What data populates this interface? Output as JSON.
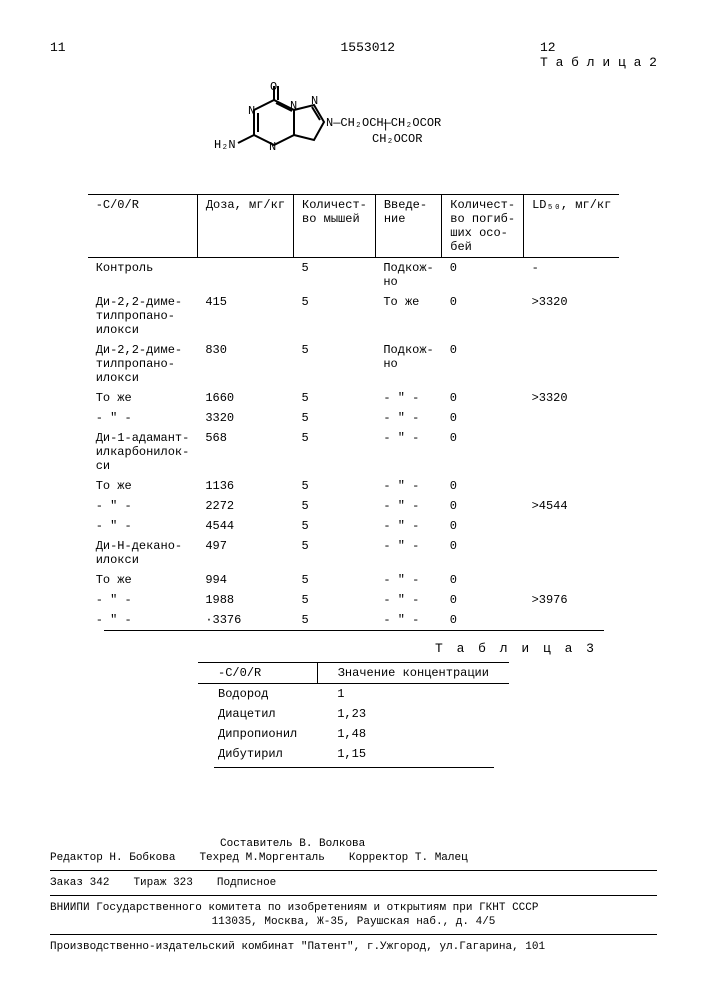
{
  "header": {
    "page_left": "11",
    "patent_number": "1553012",
    "page_right": "12",
    "table2_title": "Т а б л и ц а  2"
  },
  "chem": {
    "label_h2n": "H₂N",
    "label_o": "O",
    "label_n_ring": "N",
    "chain1": "N—CH₂OCH—CH₂OCOR",
    "chain2": "CH₂OCOR"
  },
  "table2": {
    "columns": [
      "-С/0/R",
      "Доза, мг/кг",
      "Количест-\nво мышей",
      "Введе-\nние",
      "Количест-\nво погиб-\nших осо-\nбей",
      "LD₅₀, мг/кг"
    ],
    "rows": [
      [
        "Контроль",
        "",
        "5",
        "Подкож-\nно",
        "0",
        "-"
      ],
      [
        "Ди-2,2-диме-\nтилпропано-\nилокси",
        "415",
        "5",
        "То же",
        "0",
        ">3320"
      ],
      [
        "Ди-2,2-диме-\nтилпропано-\nилокси",
        "830",
        "5",
        "Подкож-\nно",
        "0",
        ""
      ],
      [
        "То же",
        "1660",
        "5",
        "- \" -",
        "0",
        ">3320"
      ],
      [
        "- \" -",
        "3320",
        "5",
        "- \" -",
        "0",
        ""
      ],
      [
        "Ди-1-адамант-\nилкарбонилок-\nси",
        "568",
        "5",
        "- \" -",
        "0",
        ""
      ],
      [
        "То же",
        "1136",
        "5",
        "- \" -",
        "0",
        ""
      ],
      [
        "- \" -",
        "2272",
        "5",
        "- \" -",
        "0",
        ">4544"
      ],
      [
        "- \" -",
        "4544",
        "5",
        "- \" -",
        "0",
        ""
      ],
      [
        "Ди-Н-декано-\nилокси",
        "497",
        "5",
        "- \" -",
        "0",
        ""
      ],
      [
        "То же",
        "994",
        "5",
        "- \" -",
        "0",
        ""
      ],
      [
        "- \" -",
        "1988",
        "5",
        "- \" -",
        "0",
        ">3976"
      ],
      [
        "- \" -",
        "·3376",
        "5",
        "- \" -",
        "0",
        ""
      ]
    ]
  },
  "table3": {
    "title": "Т а б л и ц а 3",
    "columns": [
      "-С/0/R",
      "Значение концентрации"
    ],
    "rows": [
      [
        "Водород",
        "1"
      ],
      [
        "Диацетил",
        "1,23"
      ],
      [
        "Дипропионил",
        "1,48"
      ],
      [
        "Дибутирил",
        "1,15"
      ]
    ]
  },
  "footer": {
    "editor_label": "Редактор",
    "editor": "Н. Бобкова",
    "compiler_label": "Составитель",
    "compiler": "В. Волкова",
    "techred_label": "Техред",
    "techred": "М.Моргенталь",
    "corrector_label": "Корректор",
    "corrector": "Т. Малец",
    "order_label": "Заказ",
    "order": "342",
    "tirage_label": "Тираж",
    "tirage": "323",
    "sub": "Подписное",
    "org": "ВНИИПИ Государственного комитета по изобретениям и открытиям при ГКНТ СССР",
    "addr": "113035, Москва, Ж-35, Раушская наб., д. 4/5",
    "prod": "Производственно-издательский комбинат \"Патент\", г.Ужгород, ул.Гагарина, 101"
  }
}
